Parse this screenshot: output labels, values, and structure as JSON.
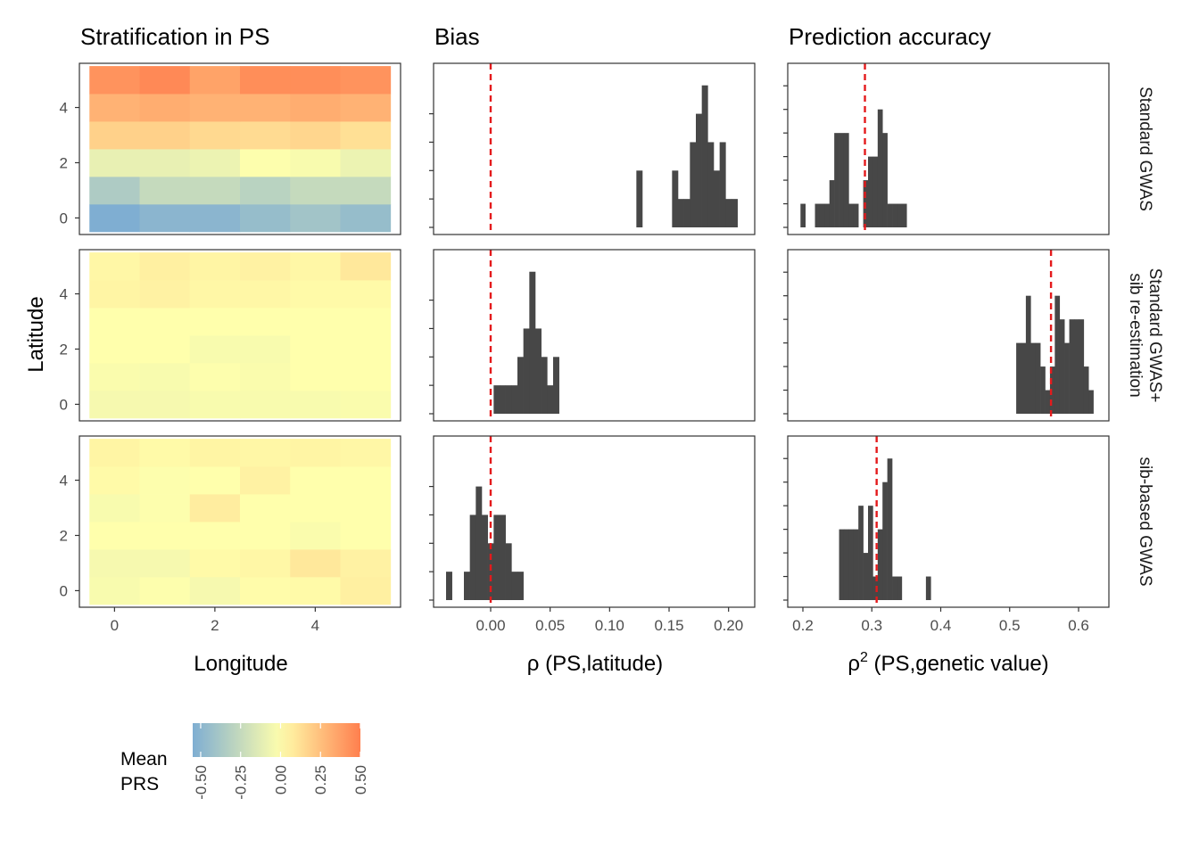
{
  "titles": {
    "col1": "Stratification in PS",
    "col2": "Bias",
    "col3": "Prediction accuracy"
  },
  "axes": {
    "heat_x": "Longitude",
    "heat_y": "Latitude",
    "bias_x": "ρ (PS,latitude)",
    "acc_x_base": "ρ",
    "acc_x_sup": "2",
    "acc_x_rest": " (PS,genetic value)"
  },
  "rows": [
    {
      "label_lines": [
        "Standard GWAS"
      ]
    },
    {
      "label_lines": [
        "Standard GWAS+",
        "sib re-estimation"
      ]
    },
    {
      "label_lines": [
        "sib-based GWAS"
      ]
    }
  ],
  "legend": {
    "title_lines": [
      "Mean",
      "PRS"
    ],
    "ticks": [
      "-0.50",
      "-0.25",
      "0.00",
      "0.25",
      "0.50"
    ],
    "tick_values": [
      -0.5,
      -0.25,
      0,
      0.25,
      0.5
    ],
    "limits": [
      -0.55,
      0.5
    ],
    "colors": [
      "#7FAED2",
      "#FFFFAC",
      "#FF7F4E"
    ]
  },
  "colors": {
    "bar": "#474747",
    "ref_line": "#e41a1c",
    "panel_border": "#333333"
  },
  "chart_data": [
    {
      "type": "heatmap",
      "title": "Stratification in PS",
      "xlabel": "Longitude",
      "ylabel": "Latitude",
      "x_ticks": [
        "0",
        "2",
        "4"
      ],
      "y_ticks": [
        "0",
        "2",
        "4"
      ],
      "x_tick_values": [
        0,
        2,
        4
      ],
      "y_tick_values": [
        0,
        2,
        4
      ],
      "xlim": [
        -0.7,
        5.7
      ],
      "ylim": [
        -0.6,
        5.6
      ],
      "x": [
        0,
        1,
        2,
        3,
        4,
        5
      ],
      "y": [
        0,
        1,
        2,
        3,
        4,
        5
      ],
      "facets": [
        {
          "facet": "Standard GWAS",
          "values": [
            [
              -0.55,
              -0.5,
              -0.5,
              -0.45,
              -0.4,
              -0.45
            ],
            [
              -0.35,
              -0.25,
              -0.25,
              -0.3,
              -0.25,
              -0.25
            ],
            [
              -0.1,
              -0.1,
              -0.08,
              -0.01,
              -0.03,
              -0.08
            ],
            [
              0.18,
              0.18,
              0.15,
              0.14,
              0.16,
              0.12
            ],
            [
              0.3,
              0.32,
              0.3,
              0.3,
              0.32,
              0.3
            ],
            [
              0.42,
              0.46,
              0.36,
              0.44,
              0.44,
              0.42
            ]
          ]
        },
        {
          "facet": "Standard GWAS+ sib re-estimation",
          "values": [
            [
              -0.04,
              -0.04,
              -0.03,
              -0.03,
              -0.03,
              -0.02
            ],
            [
              -0.02,
              -0.03,
              -0.01,
              -0.02,
              0.0,
              0.0
            ],
            [
              0.0,
              0.0,
              -0.03,
              -0.03,
              0.0,
              0.0
            ],
            [
              0.0,
              0.0,
              0.0,
              0.0,
              0.0,
              0.0
            ],
            [
              0.04,
              0.05,
              0.03,
              0.03,
              0.02,
              0.02
            ],
            [
              0.03,
              0.06,
              0.04,
              0.05,
              0.03,
              0.09
            ]
          ]
        },
        {
          "facet": "sib-based GWAS",
          "values": [
            [
              -0.03,
              -0.01,
              -0.04,
              0.01,
              0.02,
              0.06
            ],
            [
              -0.04,
              -0.04,
              0.02,
              0.03,
              0.09,
              0.05
            ],
            [
              0.0,
              0.0,
              0.0,
              0.0,
              -0.02,
              0.0
            ],
            [
              -0.03,
              -0.01,
              0.07,
              0.0,
              0.0,
              0.0
            ],
            [
              0.02,
              -0.01,
              0.0,
              0.05,
              0.0,
              0.0
            ],
            [
              0.04,
              0.02,
              0.04,
              0.03,
              0.04,
              0.03
            ]
          ]
        }
      ]
    },
    {
      "type": "bar",
      "title": "Bias",
      "xlabel": "ρ (PS,latitude)",
      "x_ticks": [
        "0.00",
        "0.05",
        "0.10",
        "0.15",
        "0.20"
      ],
      "x_tick_values": [
        0,
        0.05,
        0.1,
        0.15,
        0.2
      ],
      "xlim": [
        -0.048,
        0.222
      ],
      "y_tick_values": [
        0,
        1,
        2,
        3,
        4
      ],
      "ylim": [
        0,
        5.4
      ],
      "bin_width": 0.005,
      "facets": [
        {
          "facet": "Standard GWAS",
          "ref_line": 0.0,
          "ymax": 5.4,
          "bins": [
            [
              0.125,
              2
            ],
            [
              0.155,
              2
            ],
            [
              0.16,
              1
            ],
            [
              0.165,
              1
            ],
            [
              0.17,
              3
            ],
            [
              0.175,
              4
            ],
            [
              0.18,
              5
            ],
            [
              0.185,
              3
            ],
            [
              0.19,
              2
            ],
            [
              0.195,
              3
            ],
            [
              0.2,
              1
            ],
            [
              0.205,
              1
            ]
          ]
        },
        {
          "facet": "Standard GWAS+ sib re-estimation",
          "ref_line": 0.0,
          "ymax": 5.4,
          "bins": [
            [
              0.005,
              1
            ],
            [
              0.01,
              1
            ],
            [
              0.015,
              1
            ],
            [
              0.02,
              1
            ],
            [
              0.025,
              2
            ],
            [
              0.03,
              3
            ],
            [
              0.035,
              5
            ],
            [
              0.04,
              3
            ],
            [
              0.045,
              2
            ],
            [
              0.05,
              1
            ],
            [
              0.055,
              2
            ]
          ]
        },
        {
          "facet": "sib-based GWAS",
          "ref_line": 0.0,
          "ymax": 5.4,
          "bins": [
            [
              -0.035,
              1
            ],
            [
              -0.02,
              1
            ],
            [
              -0.015,
              3
            ],
            [
              -0.01,
              4
            ],
            [
              -0.005,
              3
            ],
            [
              0.0,
              2
            ],
            [
              0.005,
              3
            ],
            [
              0.01,
              3
            ],
            [
              0.015,
              2
            ],
            [
              0.02,
              1
            ],
            [
              0.025,
              1
            ]
          ]
        }
      ]
    },
    {
      "type": "bar",
      "title": "Prediction accuracy",
      "xlabel": "ρ2 (PS,genetic value)",
      "x_ticks": [
        "0.2",
        "0.3",
        "0.4",
        "0.5",
        "0.6"
      ],
      "x_tick_values": [
        0.2,
        0.3,
        0.4,
        0.5,
        0.6
      ],
      "xlim": [
        0.178,
        0.644
      ],
      "y_tick_values": [
        0,
        1,
        2,
        3,
        4,
        5,
        6
      ],
      "ylim": [
        0,
        6.5
      ],
      "bin_width": 0.007,
      "facets": [
        {
          "facet": "Standard GWAS",
          "ref_line": 0.29,
          "ymax": 6.5,
          "bins": [
            [
              0.2,
              1
            ],
            [
              0.221,
              1
            ],
            [
              0.228,
              1
            ],
            [
              0.235,
              1
            ],
            [
              0.242,
              2
            ],
            [
              0.249,
              4
            ],
            [
              0.256,
              4
            ],
            [
              0.263,
              4
            ],
            [
              0.27,
              1
            ],
            [
              0.277,
              1
            ],
            [
              0.284,
              0
            ],
            [
              0.291,
              2
            ],
            [
              0.298,
              3
            ],
            [
              0.305,
              3
            ],
            [
              0.312,
              5
            ],
            [
              0.319,
              4
            ],
            [
              0.326,
              1
            ],
            [
              0.333,
              1
            ],
            [
              0.34,
              1
            ],
            [
              0.347,
              1
            ]
          ]
        },
        {
          "facet": "Standard GWAS+ sib re-estimation",
          "ref_line": 0.56,
          "ymax": 6.5,
          "bins": [
            [
              0.513,
              3
            ],
            [
              0.52,
              3
            ],
            [
              0.527,
              5
            ],
            [
              0.534,
              3
            ],
            [
              0.541,
              3
            ],
            [
              0.548,
              2
            ],
            [
              0.555,
              1
            ],
            [
              0.562,
              2
            ],
            [
              0.569,
              5
            ],
            [
              0.576,
              4
            ],
            [
              0.583,
              3
            ],
            [
              0.59,
              4
            ],
            [
              0.597,
              4
            ],
            [
              0.604,
              4
            ],
            [
              0.611,
              2
            ],
            [
              0.618,
              1
            ]
          ]
        },
        {
          "facet": "sib-based GWAS",
          "ref_line": 0.307,
          "ymax": 6.5,
          "bins": [
            [
              0.256,
              3
            ],
            [
              0.263,
              3
            ],
            [
              0.27,
              3
            ],
            [
              0.277,
              3
            ],
            [
              0.284,
              4
            ],
            [
              0.291,
              2
            ],
            [
              0.298,
              4
            ],
            [
              0.305,
              1
            ],
            [
              0.312,
              3
            ],
            [
              0.319,
              5
            ],
            [
              0.326,
              6
            ],
            [
              0.333,
              1
            ],
            [
              0.34,
              1
            ],
            [
              0.382,
              1
            ]
          ]
        }
      ]
    }
  ]
}
